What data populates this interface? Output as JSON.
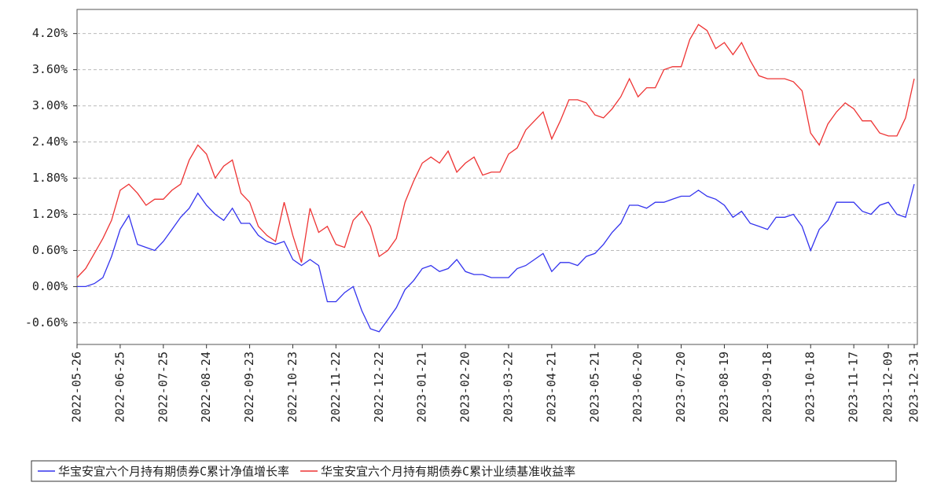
{
  "chart_data": {
    "type": "line",
    "categories": [
      "2022-05-26",
      null,
      null,
      null,
      null,
      "2022-06-25",
      null,
      null,
      null,
      null,
      "2022-07-25",
      null,
      null,
      null,
      null,
      "2022-08-24",
      null,
      null,
      null,
      null,
      "2022-09-23",
      null,
      null,
      null,
      null,
      "2022-10-23",
      null,
      null,
      null,
      null,
      "2022-11-22",
      null,
      null,
      null,
      null,
      "2022-12-22",
      null,
      null,
      null,
      null,
      "2023-01-21",
      null,
      null,
      null,
      null,
      "2023-02-20",
      null,
      null,
      null,
      null,
      "2023-03-22",
      null,
      null,
      null,
      null,
      "2023-04-21",
      null,
      null,
      null,
      null,
      "2023-05-21",
      null,
      null,
      null,
      null,
      "2023-06-20",
      null,
      null,
      null,
      null,
      "2023-07-20",
      null,
      null,
      null,
      null,
      "2023-08-19",
      null,
      null,
      null,
      null,
      "2023-09-18",
      null,
      null,
      null,
      null,
      "2023-10-18",
      null,
      null,
      null,
      null,
      "2023-11-17",
      null,
      null,
      null,
      "2023-12-09",
      null,
      null,
      "2023-12-31"
    ],
    "series": [
      {
        "name": "华宝安宜六个月持有期债券C累计净值增长率",
        "color": "#3333ee",
        "values": [
          0.0,
          0.0,
          0.05,
          0.15,
          0.5,
          0.95,
          1.18,
          0.7,
          0.65,
          0.6,
          0.75,
          0.95,
          1.15,
          1.3,
          1.55,
          1.35,
          1.2,
          1.1,
          1.3,
          1.05,
          1.05,
          0.85,
          0.75,
          0.7,
          0.75,
          0.45,
          0.35,
          0.45,
          0.35,
          -0.25,
          -0.25,
          -0.1,
          0.0,
          -0.4,
          -0.7,
          -0.75,
          -0.55,
          -0.35,
          -0.05,
          0.1,
          0.3,
          0.35,
          0.25,
          0.3,
          0.45,
          0.25,
          0.2,
          0.2,
          0.15,
          0.15,
          0.15,
          0.3,
          0.35,
          0.45,
          0.55,
          0.25,
          0.4,
          0.4,
          0.35,
          0.5,
          0.55,
          0.7,
          0.9,
          1.05,
          1.35,
          1.35,
          1.3,
          1.4,
          1.4,
          1.45,
          1.5,
          1.5,
          1.6,
          1.5,
          1.45,
          1.35,
          1.15,
          1.25,
          1.05,
          1.0,
          0.95,
          1.15,
          1.15,
          1.2,
          1.0,
          0.6,
          0.95,
          1.1,
          1.4,
          1.4,
          1.4,
          1.25,
          1.2,
          1.35,
          1.4,
          1.2,
          1.15,
          1.7
        ]
      },
      {
        "name": "华宝安宜六个月持有期债券C累计业绩基准收益率",
        "color": "#ee3333",
        "values": [
          0.15,
          0.3,
          0.55,
          0.8,
          1.1,
          1.6,
          1.7,
          1.55,
          1.35,
          1.45,
          1.45,
          1.6,
          1.7,
          2.1,
          2.35,
          2.2,
          1.8,
          2.0,
          2.1,
          1.55,
          1.4,
          1.0,
          0.85,
          0.75,
          1.4,
          0.85,
          0.4,
          1.3,
          0.9,
          1.0,
          0.7,
          0.65,
          1.1,
          1.25,
          1.0,
          0.5,
          0.6,
          0.8,
          1.4,
          1.75,
          2.05,
          2.15,
          2.05,
          2.25,
          1.9,
          2.05,
          2.15,
          1.85,
          1.9,
          1.9,
          2.2,
          2.3,
          2.6,
          2.75,
          2.9,
          2.45,
          2.75,
          3.1,
          3.1,
          3.05,
          2.85,
          2.8,
          2.95,
          3.15,
          3.45,
          3.15,
          3.3,
          3.3,
          3.6,
          3.65,
          3.65,
          4.1,
          4.35,
          4.25,
          3.95,
          4.05,
          3.85,
          4.05,
          3.75,
          3.5,
          3.45,
          3.45,
          3.45,
          3.4,
          3.25,
          2.55,
          2.35,
          2.7,
          2.9,
          3.05,
          2.95,
          2.75,
          2.75,
          2.55,
          2.5,
          2.5,
          2.8,
          3.45
        ]
      }
    ],
    "ylim": [
      -0.96,
      4.6
    ],
    "yticks": [
      {
        "value": -0.6,
        "label": "-0.60%"
      },
      {
        "value": 0,
        "label": "0.00%"
      },
      {
        "value": 0.6,
        "label": "0.60%"
      },
      {
        "value": 1.2,
        "label": "1.20%"
      },
      {
        "value": 1.8,
        "label": "1.80%"
      },
      {
        "value": 2.4,
        "label": "2.40%"
      },
      {
        "value": 3.0,
        "label": "3.00%"
      },
      {
        "value": 3.6,
        "label": "3.60%"
      },
      {
        "value": 4.2,
        "label": "4.20%"
      }
    ],
    "grid": true
  }
}
